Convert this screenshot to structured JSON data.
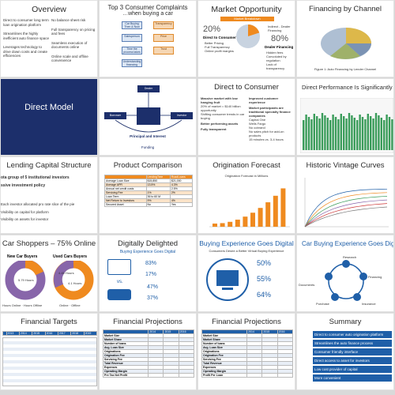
{
  "overview": {
    "title": "Overview",
    "bullets_left": [
      "Direct to consumer long term loan origination platform",
      "Streamlines the highly inefficient auto finance space",
      "Leverages technology to drive down costs and create efficiencies"
    ],
    "bullets_right": [
      "No balance sheet risk",
      "Full transparency on pricing and fees",
      "Seamless execution of documents online",
      "Online scale and offline convenience"
    ]
  },
  "complaints": {
    "title": "Top 3 Consumer Complaints",
    "subtitle": "…when buying a car",
    "left_boxes": [
      "Car Buying Then & Now",
      "Salesperson",
      "Time the process takes",
      "Understanding financing"
    ],
    "right_boxes": [
      "Transparency",
      "Price",
      "Trust"
    ]
  },
  "opportunity": {
    "title": "Market Opportunity",
    "banner": "Market Breakdown",
    "pct_left": "20%",
    "label_left": "Direct to Consumer",
    "items_left": [
      "Better Pricing",
      "Full Transparency",
      "Online profit margins"
    ],
    "pct_right": "80%",
    "label_right": "Dealer Financing",
    "label_right_top": "Indirect - Dealer Financing",
    "items_right": [
      "Hidden fees",
      "Convoluted by regulation",
      "Lack of transparency"
    ]
  },
  "channel": {
    "title": "Financing by Channel",
    "caption": "Figure 1: Auto Financing by Lender Channel"
  },
  "direct_model": {
    "title": "Direct Model"
  },
  "model_diagram": {
    "top_label": "Dealer",
    "left_label": "Borrower",
    "right_label": "Investor",
    "bottom_label": "Principal and Interest",
    "funding_label": "Funding"
  },
  "dtc": {
    "title": "Direct to Consumer",
    "col1_head": "Massive market with low hanging fruit",
    "col2_head": "Improved customer experience",
    "col1_items": [
      "20% of market = $140 billion opportunity",
      "Shifting consumer trends in car buying",
      "Better performing assets",
      "Fully transparent"
    ],
    "col2_items": [
      "Market participants are traditional specialty finance companies",
      "Capital One",
      "Wells Fargo",
      "No cobrand",
      "No sales pitch for add-on products",
      "15 minutes vs. 3-4 hours"
    ]
  },
  "performance": {
    "title": "Direct Performance Is Significantly > Indirect"
  },
  "lending": {
    "title": "Lending Capital Structure",
    "bullets": [
      "ota group of 5 institutional investors",
      "ssive investment policy",
      "Each investor allocated pro rate slice of the pie",
      "Visibility on capital for platform",
      "Visibility on assets for investor"
    ]
  },
  "comparison": {
    "title": "Product Comparison",
    "header": [
      "",
      "LendingTree",
      "RoadLoans"
    ],
    "rows": [
      [
        "Average Loan Size",
        "$15,850",
        "$21,000"
      ],
      [
        "Average APR",
        "13.5%",
        "4.3%"
      ],
      [
        "Annual net credit costs",
        "",
        "2.5%"
      ],
      [
        "Servicing Fee",
        "1%",
        "2%"
      ],
      [
        "Loan Term",
        "36 to 60 M",
        ""
      ],
      [
        "Net Return to Investors",
        "9%",
        "4%"
      ],
      [
        "Secured Asset",
        "No",
        "Yes"
      ]
    ]
  },
  "forecast": {
    "title": "Origination Forecast",
    "subtitle": "Origination Forecast in Millions"
  },
  "vintage": {
    "title": "Historic Vintage Curves"
  },
  "shoppers": {
    "title": "Car Shoppers – 75% Online",
    "new_label": "New Car Buyers",
    "used_label": "Used Cars Buyers",
    "new_inner": "5.79 Hours",
    "used_inner_a": "4.45 Hours",
    "used_inner_b": "4.1 Hours",
    "new_legend": [
      "Hours Online",
      "Hours Offline"
    ],
    "used_legend": [
      "Online",
      "Offline"
    ]
  },
  "delighted": {
    "title": "Digitally Delighted",
    "subtitle": "Buying Experience Goes Digital",
    "vs": "vs.",
    "stats": [
      "83%",
      "17%",
      "47%",
      "37%"
    ]
  },
  "buying": {
    "title": "Buying Experience Goes Digital",
    "subtitle": "Consumers Desire a Better Virtual Buying Experience",
    "stats": [
      "50%",
      "55%",
      "64%"
    ]
  },
  "car_buying": {
    "title": "Car Buying Experience Goes Digital",
    "labels": [
      "Research",
      "Financing",
      "Insurance",
      "Purchase",
      "Documents"
    ]
  },
  "targets": {
    "title": "Financial Targets",
    "years": [
      "2013",
      "2014",
      "2015",
      "2016",
      "2017",
      "2018",
      "2019"
    ]
  },
  "projections1": {
    "title": "Financial Projections",
    "years": [
      "2014",
      "2015",
      "2016"
    ],
    "rows": [
      "Market Size",
      "Market Share",
      "Number of loans",
      "Avg. Loan Size",
      "Originations",
      "Origination Fee",
      "Servicing Fee",
      "Total Revenue",
      "Expenses",
      "Operating Margin",
      "Pre Tax Net Profit"
    ]
  },
  "projections2": {
    "title": "Financial Projections",
    "years": [
      "2014",
      "2015",
      "2016"
    ],
    "rows": [
      "Market Size",
      "Market Share",
      "Number of loans",
      "Avg. Loan Size",
      "Originations",
      "Origination Fee",
      "Servicing Fee",
      "Total Revenue",
      "Expenses",
      "Operating Margin",
      "Profit Per Loan"
    ]
  },
  "summary": {
    "title": "Summary",
    "items": [
      "Direct to consumer auto origination platform",
      "Streamlines the auto finance process",
      "Consumer friendly interface",
      "Direct access to asset for investors",
      "Low cost provider of capital",
      "More convenient"
    ]
  },
  "colors": {
    "blue": "#1f5fa8",
    "orange": "#ef8a1f",
    "dark_navy": "#1c2f6b",
    "green": "#3a9c5a",
    "purple": "#8866aa"
  }
}
